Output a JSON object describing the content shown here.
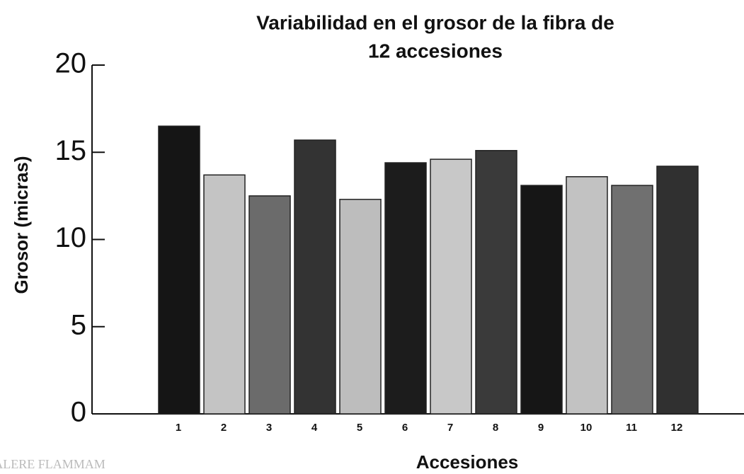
{
  "chart_data": {
    "type": "bar",
    "title": [
      "Variabilidad en el grosor de la fibra de",
      "12 accesiones"
    ],
    "x_label": "Accesiones",
    "y_label": "Grosor (micras)",
    "categories": [
      "1",
      "2",
      "3",
      "4",
      "5",
      "6",
      "7",
      "8",
      "9",
      "10",
      "11",
      "12"
    ],
    "values": [
      16.5,
      13.7,
      12.5,
      15.7,
      12.3,
      14.4,
      14.6,
      15.1,
      13.1,
      13.6,
      13.1,
      14.2
    ],
    "colors": [
      "#151515",
      "#c4c4c4",
      "#6b6b6b",
      "#333333",
      "#bdbdbd",
      "#1c1c1c",
      "#c8c8c8",
      "#3a3a3a",
      "#161616",
      "#c2c2c2",
      "#707070",
      "#303030"
    ],
    "ylim": [
      0,
      20
    ],
    "yticks": [
      0,
      5,
      10,
      15,
      20
    ],
    "watermark": "ALERE FLAMMAM"
  }
}
